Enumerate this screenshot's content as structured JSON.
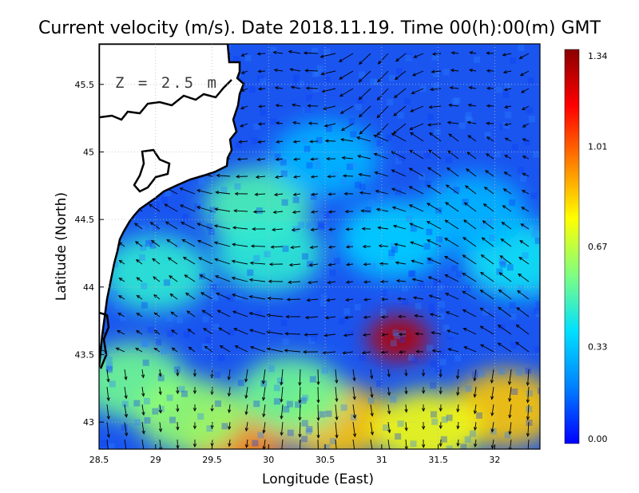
{
  "chart_data": {
    "type": "heatmap",
    "title": "Current velocity (m/s). Date 2018.11.19. Time 00(h):00(m) GMT",
    "depth_label": "Z = 2.5 m",
    "xlabel": "Longitude (East)",
    "ylabel": "Latitude (North)",
    "xlim": [
      28.5,
      32.4
    ],
    "ylim": [
      42.8,
      45.8
    ],
    "x_ticks": [
      "28.5",
      "29",
      "29.5",
      "30",
      "30.5",
      "31",
      "31.5",
      "32"
    ],
    "y_ticks": [
      "43",
      "43.5",
      "44",
      "44.5",
      "45",
      "45.5"
    ],
    "grid": true,
    "colorbar": {
      "min": 0.0,
      "max": 1.34,
      "ticks": [
        "0.00",
        "0.33",
        "0.67",
        "1.01",
        "1.34"
      ],
      "colormap": [
        "#0000ff",
        "#0080ff",
        "#00e0ff",
        "#80ff80",
        "#ffff00",
        "#ff8000",
        "#ff0000",
        "#8b0000"
      ]
    },
    "velocity_hotspots": [
      {
        "lon": 31.15,
        "lat": 43.62,
        "speed": 1.25
      },
      {
        "lon": 29.7,
        "lat": 42.9,
        "speed": 0.95
      },
      {
        "lon": 30.6,
        "lat": 43.0,
        "speed": 0.85
      },
      {
        "lon": 32.1,
        "lat": 43.1,
        "speed": 0.85
      },
      {
        "lon": 31.4,
        "lat": 42.95,
        "speed": 0.75
      },
      {
        "lon": 29.0,
        "lat": 44.1,
        "speed": 0.45
      },
      {
        "lon": 29.9,
        "lat": 44.6,
        "speed": 0.5
      },
      {
        "lon": 30.0,
        "lat": 44.25,
        "speed": 0.45
      },
      {
        "lon": 31.1,
        "lat": 44.35,
        "speed": 0.35
      },
      {
        "lon": 32.2,
        "lat": 44.2,
        "speed": 0.4
      },
      {
        "lon": 31.8,
        "lat": 44.55,
        "speed": 0.3
      },
      {
        "lon": 30.5,
        "lat": 44.95,
        "speed": 0.3
      },
      {
        "lon": 28.8,
        "lat": 43.3,
        "speed": 0.55
      },
      {
        "lon": 29.3,
        "lat": 43.05,
        "speed": 0.6
      },
      {
        "lon": 30.2,
        "lat": 43.2,
        "speed": 0.55
      }
    ]
  }
}
